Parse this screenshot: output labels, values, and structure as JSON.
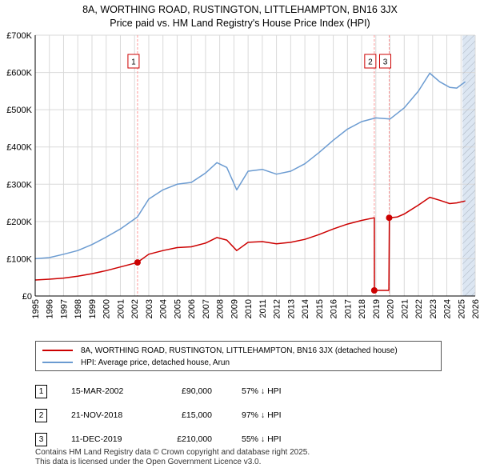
{
  "title_line1": "8A, WORTHING ROAD, RUSTINGTON, LITTLEHAMPTON, BN16 3JX",
  "title_line2": "Price paid vs. HM Land Registry's House Price Index (HPI)",
  "chart_data": {
    "type": "line",
    "title": "8A, WORTHING ROAD, RUSTINGTON, LITTLEHAMPTON, BN16 3JX — Price paid vs. HM Land Registry's House Price Index (HPI)",
    "xlim": [
      1995,
      2026
    ],
    "ylim": [
      0,
      700000
    ],
    "y_ticks": [
      0,
      100000,
      200000,
      300000,
      400000,
      500000,
      600000,
      700000
    ],
    "y_tick_labels": [
      "£0",
      "£100K",
      "£200K",
      "£300K",
      "£400K",
      "£500K",
      "£600K",
      "£700K"
    ],
    "x_ticks": [
      1995,
      1996,
      1997,
      1998,
      1999,
      2000,
      2001,
      2002,
      2003,
      2004,
      2005,
      2006,
      2007,
      2008,
      2009,
      2010,
      2011,
      2012,
      2013,
      2014,
      2015,
      2016,
      2017,
      2018,
      2019,
      2020,
      2021,
      2022,
      2023,
      2024,
      2025,
      2026
    ],
    "x_tick_labels": [
      "1995",
      "1996",
      "1997",
      "1998",
      "1999",
      "2000",
      "2001",
      "2002",
      "2003",
      "2004",
      "2005",
      "2006",
      "2007",
      "2008",
      "2009",
      "2010",
      "2011",
      "2012",
      "2013",
      "2014",
      "2015",
      "2016",
      "2017",
      "2018",
      "2019",
      "2020",
      "2021",
      "2022",
      "2023",
      "2024",
      "2025",
      "2026"
    ],
    "forecast_start": 2025.1,
    "colors": {
      "property": "#cc0000",
      "hpi": "#6b9bd1",
      "shade": "#dce6f2",
      "grid": "#d9d9d9",
      "vline": "#ff9999"
    },
    "series": [
      {
        "name": "8A, WORTHING ROAD, RUSTINGTON, LITTLEHAMPTON, BN16 3JX (detached house)",
        "color": "#cc0000",
        "x": [
          1995.0,
          1996.0,
          1997.0,
          1998.0,
          1999.0,
          2000.0,
          2001.0,
          2002.2,
          2003.0,
          2004.0,
          2005.0,
          2006.0,
          2007.0,
          2007.8,
          2008.5,
          2009.2,
          2010.0,
          2011.0,
          2012.0,
          2013.0,
          2014.0,
          2015.0,
          2016.0,
          2017.0,
          2018.0,
          2018.89,
          2018.9,
          2019.92,
          2019.95,
          2020.5,
          2021.0,
          2022.0,
          2022.8,
          2023.5,
          2024.2,
          2024.7,
          2025.3
        ],
        "values": [
          43000,
          45000,
          48000,
          53000,
          60000,
          68000,
          78000,
          90000,
          112000,
          122000,
          130000,
          132000,
          142000,
          157000,
          150000,
          122000,
          144000,
          146000,
          140000,
          144000,
          152000,
          165000,
          180000,
          193000,
          203000,
          210000,
          15000,
          15000,
          210000,
          212000,
          220000,
          244000,
          265000,
          257000,
          248000,
          250000,
          255000
        ]
      },
      {
        "name": "HPI: Average price, detached house, Arun",
        "color": "#6b9bd1",
        "x": [
          1995.0,
          1996.0,
          1997.0,
          1998.0,
          1999.0,
          2000.0,
          2001.0,
          2002.2,
          2003.0,
          2004.0,
          2005.0,
          2006.0,
          2007.0,
          2007.8,
          2008.5,
          2009.2,
          2010.0,
          2011.0,
          2012.0,
          2013.0,
          2014.0,
          2015.0,
          2016.0,
          2017.0,
          2018.0,
          2019.0,
          2020.0,
          2021.0,
          2022.0,
          2022.8,
          2023.5,
          2024.2,
          2024.7,
          2025.3
        ],
        "values": [
          100000,
          103000,
          112000,
          122000,
          138000,
          158000,
          180000,
          212000,
          260000,
          285000,
          300000,
          305000,
          330000,
          358000,
          345000,
          285000,
          335000,
          340000,
          327000,
          335000,
          355000,
          385000,
          418000,
          448000,
          468000,
          478000,
          475000,
          505000,
          550000,
          598000,
          575000,
          560000,
          558000,
          575000
        ]
      }
    ],
    "transactions": [
      {
        "num": "1",
        "x": 2002.21,
        "price": 90000,
        "date": "15-MAR-2002",
        "price_label": "£90,000",
        "hpi_diff": "57% ↓ HPI"
      },
      {
        "num": "2",
        "x": 2018.89,
        "price": 15000,
        "date": "21-NOV-2018",
        "price_label": "£15,000",
        "hpi_diff": "97% ↓ HPI"
      },
      {
        "num": "3",
        "x": 2019.94,
        "price": 210000,
        "date": "11-DEC-2019",
        "price_label": "£210,000",
        "hpi_diff": "55% ↓ HPI"
      }
    ]
  },
  "legend": {
    "property_label": "8A, WORTHING ROAD, RUSTINGTON, LITTLEHAMPTON, BN16 3JX (detached house)",
    "hpi_label": "HPI: Average price, detached house, Arun"
  },
  "footer_line1": "Contains HM Land Registry data © Crown copyright and database right 2025.",
  "footer_line2": "This data is licensed under the Open Government Licence v3.0."
}
